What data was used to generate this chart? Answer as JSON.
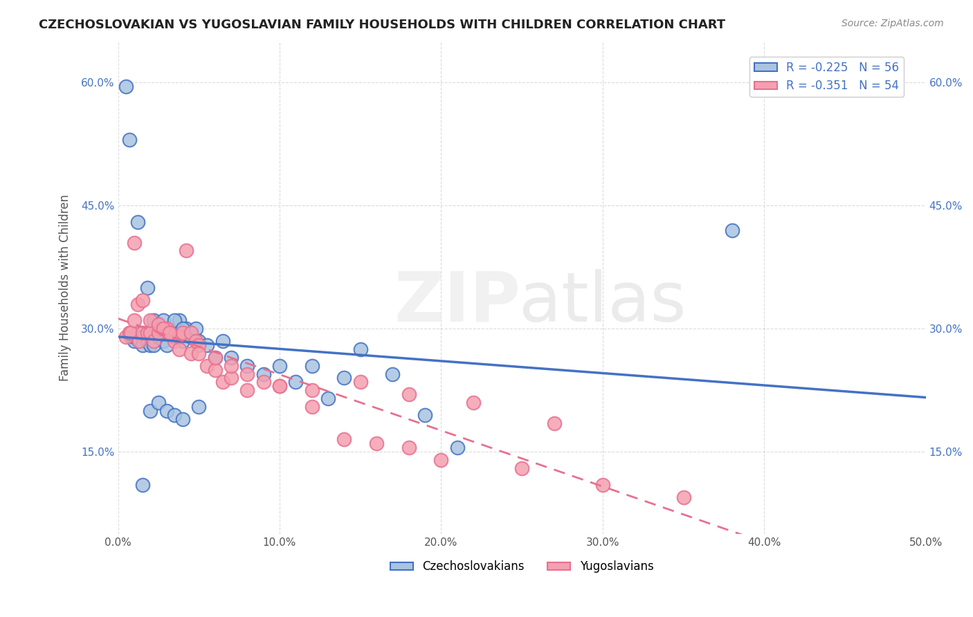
{
  "title": "CZECHOSLOVAKIAN VS YUGOSLAVIAN FAMILY HOUSEHOLDS WITH CHILDREN CORRELATION CHART",
  "source": "Source: ZipAtlas.com",
  "xlabel": "",
  "ylabel": "Family Households with Children",
  "xlim": [
    0.0,
    0.5
  ],
  "ylim": [
    0.05,
    0.65
  ],
  "xtick_labels": [
    "0.0%",
    "10.0%",
    "20.0%",
    "30.0%",
    "40.0%",
    "50.0%"
  ],
  "xtick_vals": [
    0.0,
    0.1,
    0.2,
    0.3,
    0.4,
    0.5
  ],
  "ytick_labels": [
    "15.0%",
    "30.0%",
    "45.0%",
    "60.0%"
  ],
  "ytick_vals": [
    0.15,
    0.3,
    0.45,
    0.6
  ],
  "czech_R": -0.225,
  "czech_N": 56,
  "yugoslav_R": -0.351,
  "yugoslav_N": 54,
  "czech_color": "#a8c4e0",
  "yugoslav_color": "#f4a0b0",
  "czech_line_color": "#4472c4",
  "yugoslav_line_color": "#e87090",
  "grid_color": "#cccccc",
  "background_color": "#ffffff",
  "czech_x": [
    0.005,
    0.007,
    0.008,
    0.01,
    0.01,
    0.012,
    0.013,
    0.015,
    0.015,
    0.018,
    0.02,
    0.02,
    0.022,
    0.022,
    0.025,
    0.025,
    0.028,
    0.03,
    0.03,
    0.032,
    0.035,
    0.038,
    0.04,
    0.042,
    0.045,
    0.048,
    0.05,
    0.055,
    0.06,
    0.065,
    0.07,
    0.08,
    0.09,
    0.1,
    0.11,
    0.12,
    0.13,
    0.14,
    0.15,
    0.17,
    0.19,
    0.21,
    0.012,
    0.018,
    0.022,
    0.028,
    0.035,
    0.04,
    0.02,
    0.025,
    0.03,
    0.035,
    0.04,
    0.05,
    0.015,
    0.38
  ],
  "czech_y": [
    0.595,
    0.53,
    0.29,
    0.285,
    0.29,
    0.295,
    0.285,
    0.29,
    0.28,
    0.285,
    0.295,
    0.28,
    0.3,
    0.28,
    0.29,
    0.295,
    0.285,
    0.28,
    0.295,
    0.295,
    0.29,
    0.31,
    0.285,
    0.3,
    0.29,
    0.3,
    0.285,
    0.28,
    0.265,
    0.285,
    0.265,
    0.255,
    0.245,
    0.255,
    0.235,
    0.255,
    0.215,
    0.24,
    0.275,
    0.245,
    0.195,
    0.155,
    0.43,
    0.35,
    0.31,
    0.31,
    0.31,
    0.3,
    0.2,
    0.21,
    0.2,
    0.195,
    0.19,
    0.205,
    0.11,
    0.42
  ],
  "yugoslav_x": [
    0.005,
    0.007,
    0.008,
    0.01,
    0.012,
    0.013,
    0.015,
    0.018,
    0.02,
    0.022,
    0.025,
    0.028,
    0.03,
    0.032,
    0.035,
    0.038,
    0.04,
    0.042,
    0.045,
    0.048,
    0.05,
    0.055,
    0.06,
    0.065,
    0.07,
    0.08,
    0.1,
    0.12,
    0.15,
    0.18,
    0.22,
    0.27,
    0.01,
    0.015,
    0.02,
    0.025,
    0.028,
    0.032,
    0.038,
    0.045,
    0.05,
    0.06,
    0.07,
    0.08,
    0.09,
    0.1,
    0.12,
    0.14,
    0.16,
    0.18,
    0.2,
    0.25,
    0.3,
    0.35
  ],
  "yugoslav_y": [
    0.29,
    0.295,
    0.295,
    0.31,
    0.33,
    0.285,
    0.295,
    0.295,
    0.295,
    0.285,
    0.295,
    0.3,
    0.3,
    0.295,
    0.285,
    0.29,
    0.295,
    0.395,
    0.295,
    0.285,
    0.28,
    0.255,
    0.25,
    0.235,
    0.24,
    0.225,
    0.23,
    0.225,
    0.235,
    0.22,
    0.21,
    0.185,
    0.405,
    0.335,
    0.31,
    0.305,
    0.3,
    0.295,
    0.275,
    0.27,
    0.27,
    0.265,
    0.255,
    0.245,
    0.235,
    0.23,
    0.205,
    0.165,
    0.16,
    0.155,
    0.14,
    0.13,
    0.11,
    0.095
  ]
}
